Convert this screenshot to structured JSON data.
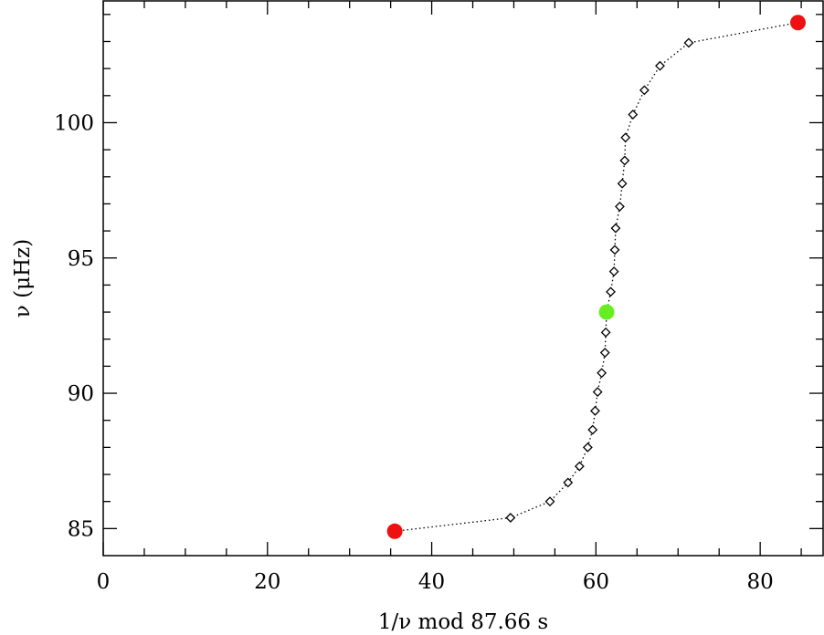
{
  "chart_data": {
    "type": "scatter",
    "title": "",
    "xlabel": "1/ν mod 87.66 s",
    "ylabel": "ν (μHz)",
    "xlim": [
      0,
      87.66
    ],
    "ylim": [
      84,
      104.5
    ],
    "xticks": [
      0,
      20,
      40,
      60,
      80
    ],
    "xticks_minor": [
      5,
      10,
      15,
      25,
      30,
      35,
      45,
      50,
      55,
      65,
      70,
      75,
      85
    ],
    "yticks": [
      85,
      90,
      95,
      100
    ],
    "yticks_minor": [
      86,
      87,
      88,
      89,
      91,
      92,
      93,
      94,
      96,
      97,
      98,
      99,
      101,
      102,
      103,
      104
    ],
    "grid": false,
    "series": [
      {
        "marker": "diamond-open",
        "line": "dotted",
        "color": "#000000",
        "points": [
          {
            "x": 35.5,
            "y": 84.9
          },
          {
            "x": 49.6,
            "y": 85.4
          },
          {
            "x": 54.4,
            "y": 86.0
          },
          {
            "x": 56.6,
            "y": 86.7
          },
          {
            "x": 58.0,
            "y": 87.3
          },
          {
            "x": 59.0,
            "y": 88.0
          },
          {
            "x": 59.6,
            "y": 88.65
          },
          {
            "x": 59.9,
            "y": 89.35
          },
          {
            "x": 60.2,
            "y": 90.05
          },
          {
            "x": 60.7,
            "y": 90.75
          },
          {
            "x": 61.1,
            "y": 91.5
          },
          {
            "x": 61.2,
            "y": 92.25
          },
          {
            "x": 61.3,
            "y": 93.0
          },
          {
            "x": 61.8,
            "y": 93.75
          },
          {
            "x": 62.2,
            "y": 94.5
          },
          {
            "x": 62.3,
            "y": 95.3
          },
          {
            "x": 62.4,
            "y": 96.1
          },
          {
            "x": 62.9,
            "y": 96.9
          },
          {
            "x": 63.2,
            "y": 97.75
          },
          {
            "x": 63.5,
            "y": 98.6
          },
          {
            "x": 63.6,
            "y": 99.45
          },
          {
            "x": 64.5,
            "y": 100.3
          },
          {
            "x": 65.9,
            "y": 101.2
          },
          {
            "x": 67.8,
            "y": 102.1
          },
          {
            "x": 71.3,
            "y": 102.95
          },
          {
            "x": 84.6,
            "y": 103.7
          }
        ]
      }
    ],
    "highlights": [
      {
        "x": 35.5,
        "y": 84.9,
        "color": "#ee1111"
      },
      {
        "x": 84.6,
        "y": 103.7,
        "color": "#ee1111"
      },
      {
        "x": 61.3,
        "y": 93.0,
        "color": "#66ee22"
      }
    ]
  }
}
